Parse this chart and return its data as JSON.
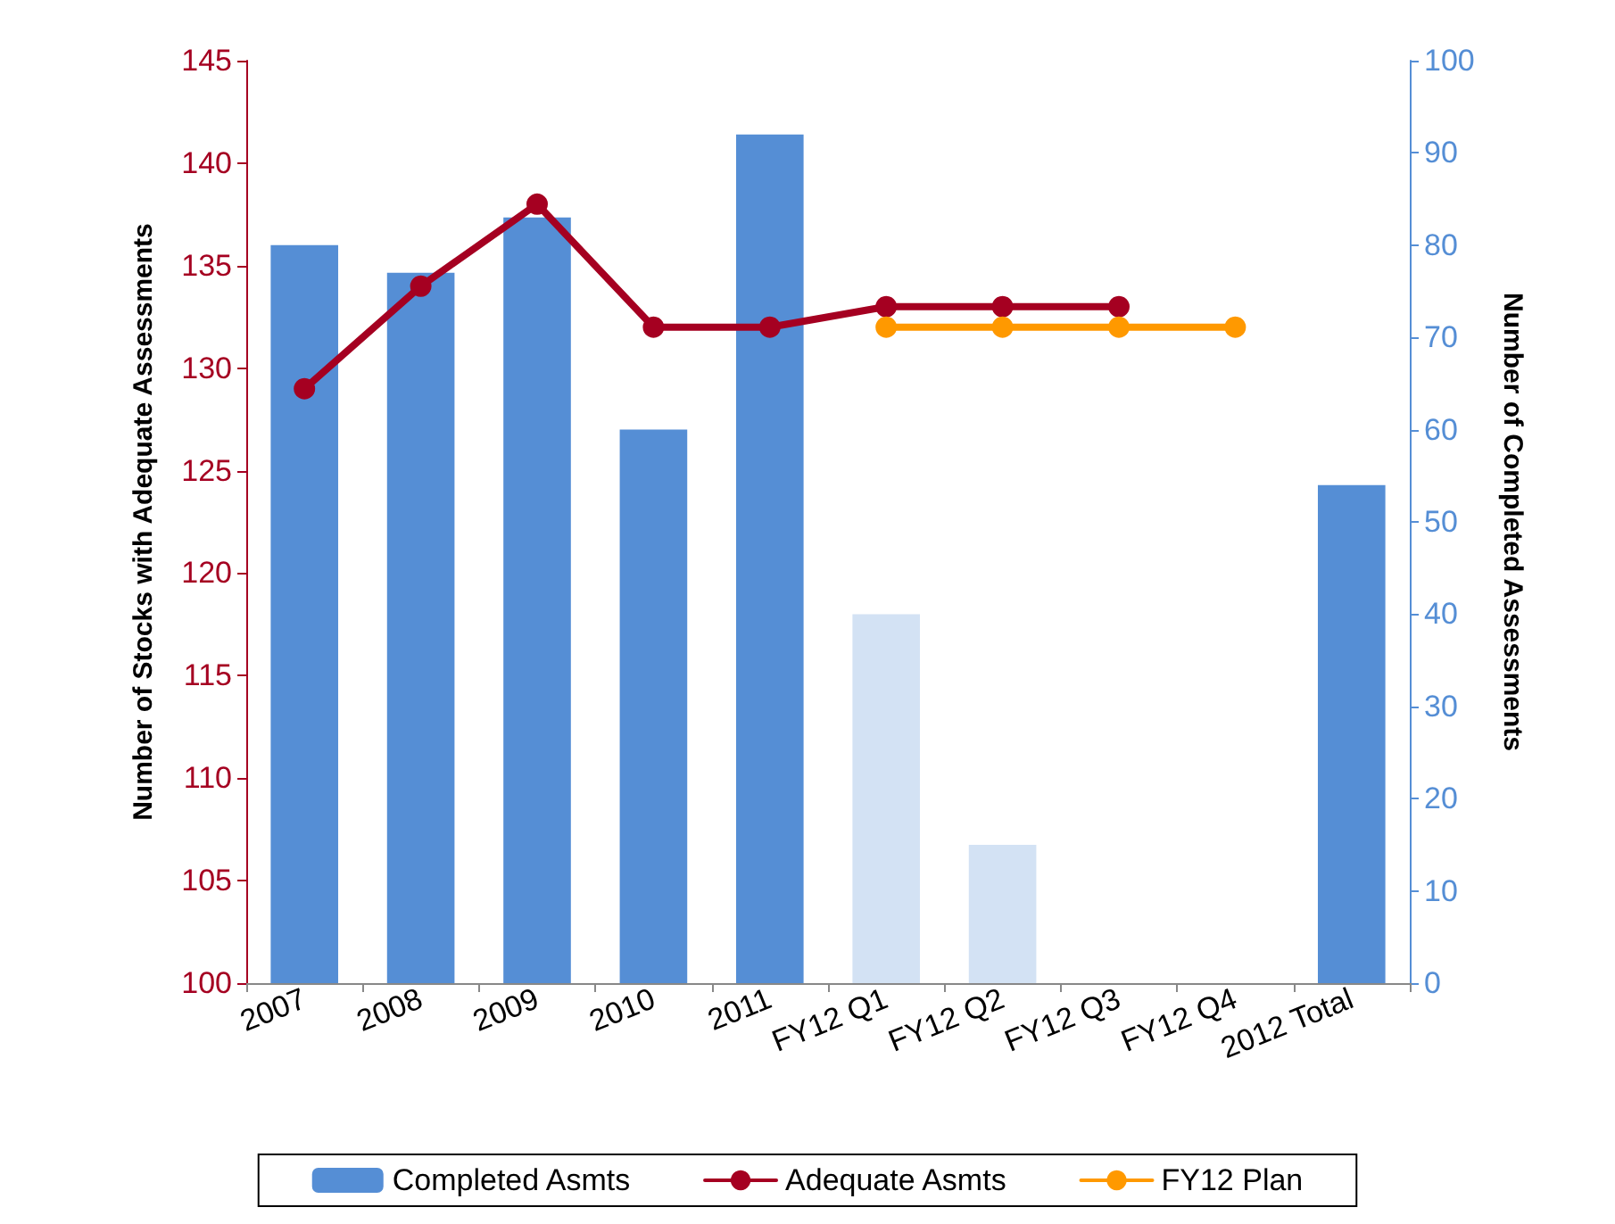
{
  "chart_data": {
    "type": "bar",
    "ylabel": "Number of Stocks with Adequate Assessments",
    "y2label": "Number of Completed Assessments",
    "categories": [
      "2007",
      "2008",
      "2009",
      "2010",
      "2011",
      "FY12 Q1",
      "FY12 Q2",
      "FY12 Q3",
      "FY12 Q4",
      "2012 Total"
    ],
    "series": [
      {
        "name": "Completed Asmts",
        "axis": "y2",
        "color": "#558ed5",
        "colors": [
          "#558ed5",
          "#558ed5",
          "#558ed5",
          "#558ed5",
          "#558ed5",
          "#d3e2f4",
          "#d3e2f4",
          "#558ed5",
          "#558ed5",
          "#558ed5"
        ],
        "values": [
          80,
          77,
          83,
          60,
          92,
          40,
          15,
          null,
          null,
          54
        ]
      },
      {
        "name": "Adequate Asmts",
        "type": "line",
        "color": "#a50021",
        "values": [
          129,
          134,
          138,
          132,
          132,
          133,
          133,
          133,
          null,
          null
        ]
      },
      {
        "name": "FY12 Plan",
        "type": "line",
        "color": "#ff9900",
        "values": [
          null,
          null,
          null,
          null,
          null,
          132,
          132,
          132,
          132,
          null
        ]
      }
    ],
    "ylim": [
      100,
      145
    ],
    "yticks": [
      100,
      105,
      110,
      115,
      120,
      125,
      130,
      135,
      140,
      145
    ],
    "y2lim": [
      0,
      100
    ],
    "y2ticks": [
      0,
      10,
      20,
      30,
      40,
      50,
      60,
      70,
      80,
      90,
      100
    ],
    "grid": false,
    "legend": "bottom",
    "marker": "circle",
    "line_style": "solid"
  }
}
